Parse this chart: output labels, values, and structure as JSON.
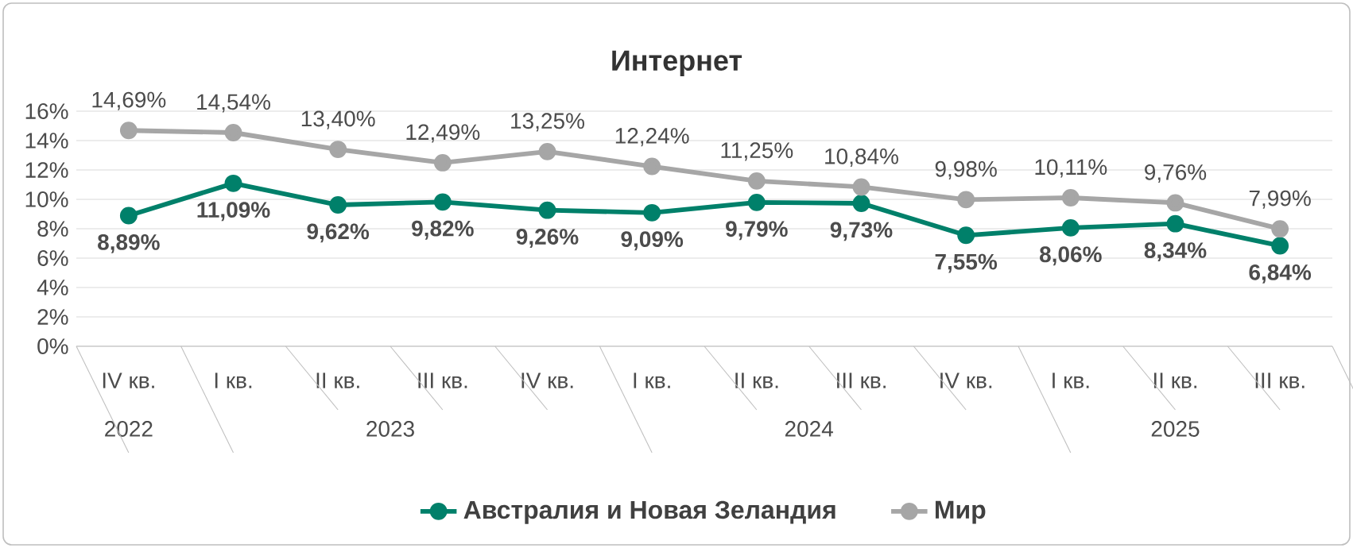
{
  "chart_data": {
    "type": "line",
    "title": "Интернет",
    "categories": [
      "IV кв.",
      "I кв.",
      "II кв.",
      "III кв.",
      "IV кв.",
      "I кв.",
      "II кв.",
      "III кв.",
      "IV кв.",
      "I кв.",
      "II кв.",
      "III кв."
    ],
    "annotations": [
      "2022",
      "2023",
      "2024",
      "2025"
    ],
    "series": [
      {
        "name": "Австралия и Новая Зеландия",
        "color": "#00806a",
        "values": [
          8.89,
          11.09,
          9.62,
          9.82,
          9.26,
          9.09,
          9.79,
          9.73,
          7.55,
          8.06,
          8.34,
          6.84
        ],
        "value_labels": [
          "8,89%",
          "11,09%",
          "9,62%",
          "9,82%",
          "9,26%",
          "9,09%",
          "9,79%",
          "9,73%",
          "7,55%",
          "8,06%",
          "8,34%",
          "6,84%"
        ]
      },
      {
        "name": "Мир",
        "color": "#a6a6a6",
        "values": [
          14.69,
          14.54,
          13.4,
          12.49,
          13.25,
          12.24,
          11.25,
          10.84,
          9.98,
          10.11,
          9.76,
          7.99
        ],
        "value_labels": [
          "14,69%",
          "14,54%",
          "13,40%",
          "12,49%",
          "13,25%",
          "12,24%",
          "11,25%",
          "10,84%",
          "9,98%",
          "10,11%",
          "9,76%",
          "7,99%"
        ]
      }
    ],
    "ylim": [
      0,
      16
    ],
    "yticks": [
      {
        "value": 0,
        "label": "0%"
      },
      {
        "value": 2,
        "label": "2%"
      },
      {
        "value": 4,
        "label": "4%"
      },
      {
        "value": 6,
        "label": "6%"
      },
      {
        "value": 8,
        "label": "8%"
      },
      {
        "value": 10,
        "label": "10%"
      },
      {
        "value": 12,
        "label": "12%"
      },
      {
        "value": 14,
        "label": "14%"
      },
      {
        "value": 16,
        "label": "16%"
      }
    ],
    "grid": "y",
    "legend": "bottom",
    "marker": "circle",
    "line_style": "solid"
  }
}
